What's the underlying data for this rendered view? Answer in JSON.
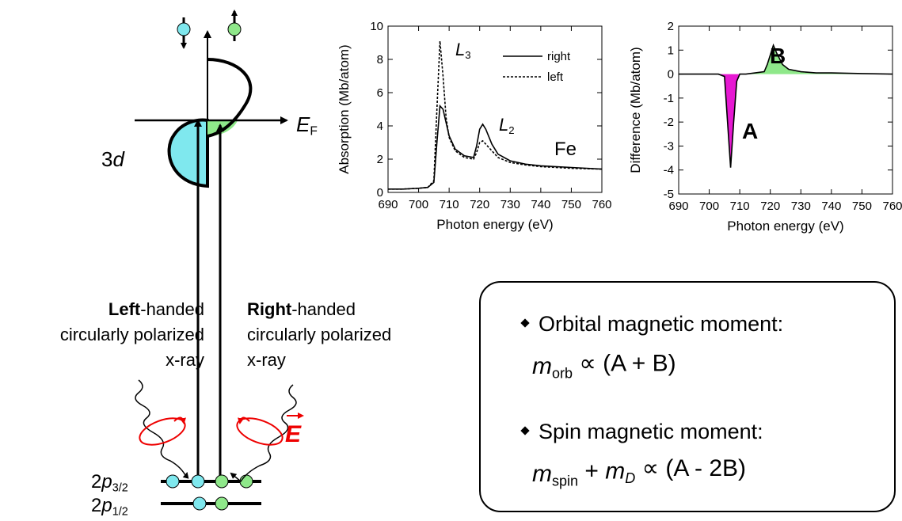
{
  "diagram": {
    "orbital": [
      {
        "text": "3",
        "style": "normal"
      },
      {
        "text": "d",
        "style": "italic"
      }
    ],
    "fermi": [
      {
        "text": "E",
        "style": "italic"
      },
      {
        "text": "F",
        "style": "sub"
      }
    ],
    "left_label": {
      "bold": "Left",
      "rest": "-handed",
      "line2": "circularly polarized",
      "line3": "x-ray"
    },
    "right_label": {
      "bold": "Right",
      "rest": "-handed",
      "line2": "circularly polarized",
      "line3": "x-ray"
    },
    "field": "E",
    "levels": [
      [
        {
          "text": "2",
          "style": "normal"
        },
        {
          "text": "p",
          "style": "italic"
        },
        {
          "text": "3/2",
          "style": "sub"
        }
      ],
      [
        {
          "text": "2",
          "style": "normal"
        },
        {
          "text": "p",
          "style": "italic"
        },
        {
          "text": "1/2",
          "style": "sub"
        }
      ]
    ]
  },
  "chart_data": [
    {
      "type": "line",
      "ylabel": "Absorption (Mb/atom)",
      "xlabel": "Photon energy (eV)",
      "x": [
        690,
        695,
        700,
        703,
        705,
        706,
        707,
        708,
        709,
        710,
        712,
        715,
        718,
        719,
        720,
        721,
        722,
        724,
        726,
        730,
        735,
        740,
        750,
        760
      ],
      "series": [
        {
          "name": "right",
          "color": "#000000",
          "style": "solid",
          "values": [
            0.2,
            0.2,
            0.25,
            0.3,
            0.6,
            3,
            5.2,
            5,
            4.2,
            3.4,
            2.6,
            2.2,
            2.1,
            2.8,
            3.8,
            4.1,
            3.8,
            2.9,
            2.3,
            1.9,
            1.7,
            1.6,
            1.5,
            1.4
          ]
        },
        {
          "name": "left",
          "color": "#000000",
          "style": "dashed",
          "values": [
            0.2,
            0.2,
            0.25,
            0.3,
            0.7,
            5,
            9.1,
            7,
            4.5,
            3.3,
            2.5,
            2.1,
            2,
            2.4,
            3,
            3.1,
            2.9,
            2.5,
            2.1,
            1.8,
            1.65,
            1.55,
            1.45,
            1.4
          ]
        }
      ],
      "xlim": [
        690,
        760
      ],
      "xticks": [
        690,
        700,
        710,
        720,
        730,
        740,
        750,
        760
      ],
      "ylim": [
        0,
        10
      ],
      "yticks": [
        0,
        2,
        4,
        6,
        8,
        10
      ],
      "legend": "upper right",
      "annotations": [
        [
          {
            "text": "L",
            "style": "italic"
          },
          {
            "text": "3",
            "style": "sub"
          }
        ],
        [
          {
            "text": "L",
            "style": "italic"
          },
          {
            "text": "2",
            "style": "sub"
          }
        ],
        [
          {
            "text": "Fe",
            "style": "normal"
          }
        ]
      ]
    },
    {
      "type": "line",
      "ylabel": "Difference (Mb/atom)",
      "xlabel": "Photon energy (eV)",
      "x": [
        690,
        695,
        700,
        703,
        705,
        706,
        707,
        708,
        709,
        710,
        712,
        715,
        718,
        719,
        720,
        721,
        722,
        724,
        726,
        730,
        735,
        740,
        750,
        760
      ],
      "series": [
        {
          "color": "#000000",
          "style": "solid",
          "values": [
            0,
            0,
            0,
            0,
            -0.1,
            -2,
            -3.9,
            -2,
            -0.3,
            0,
            0,
            0.05,
            0.1,
            0.4,
            0.8,
            1.2,
            0.9,
            0.4,
            0.2,
            0.1,
            0.05,
            0.05,
            0.02,
            0
          ]
        }
      ],
      "fill_negative": "#e619d2",
      "fill_positive": "#8fe88a",
      "xlim": [
        690,
        760
      ],
      "xticks": [
        690,
        700,
        710,
        720,
        730,
        740,
        750,
        760
      ],
      "ylim": [
        -5,
        2
      ],
      "yticks": [
        -5,
        -4,
        -3,
        -2,
        -1,
        0,
        1,
        2
      ],
      "annotations": [
        [
          {
            "text": "A",
            "style": "bold"
          }
        ],
        [
          {
            "text": "B",
            "style": "bold"
          }
        ]
      ]
    }
  ],
  "summary": {
    "items": [
      {
        "heading": "Orbital magnetic moment:",
        "formula": [
          {
            "text": "m",
            "style": "italic"
          },
          {
            "text": "orb",
            "style": "sub"
          },
          {
            "text": " ∝ (A + B)",
            "style": "normal"
          }
        ]
      },
      {
        "heading": "Spin magnetic moment:",
        "formula": [
          {
            "text": "m",
            "style": "italic"
          },
          {
            "text": "spin",
            "style": "sub"
          },
          {
            "text": " + ",
            "style": "normal"
          },
          {
            "text": "m",
            "style": "italic"
          },
          {
            "text": "D",
            "style": "subitalic"
          },
          {
            "text": " ∝ (A - 2B)",
            "style": "normal"
          }
        ]
      }
    ]
  }
}
